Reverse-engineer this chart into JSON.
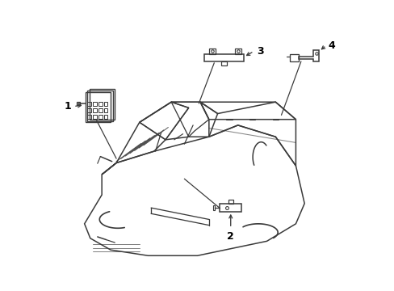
{
  "background_color": "#ffffff",
  "line_color": "#3a3a3a",
  "label_color": "#000000",
  "line_width": 1.1
}
